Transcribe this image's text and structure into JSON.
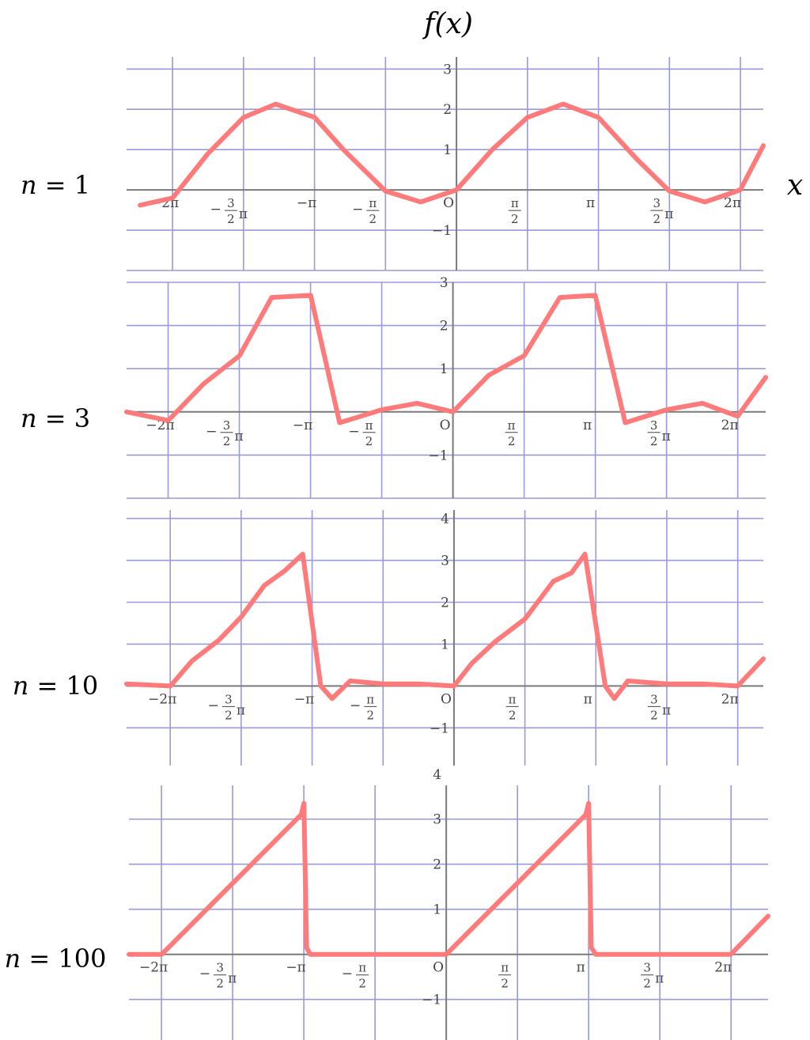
{
  "figure": {
    "ylabel": "f(x)",
    "xlabel": "x"
  },
  "chart_data": [
    {
      "type": "line",
      "label": "n = 1",
      "n": 1,
      "xlim": [
        -7.3,
        6.79
      ],
      "ylim": [
        -2,
        3.3
      ],
      "yticks": [
        -1,
        1,
        2,
        3
      ],
      "xticks": [
        "−2π",
        "−3/2 π",
        "−π",
        "−π/2",
        "O",
        "π/2",
        "π",
        "3/2 π",
        "2π"
      ],
      "x": [
        -7.0,
        -6.28,
        -5.5,
        -4.71,
        -4.0,
        -3.14,
        -2.5,
        -1.57,
        -0.79,
        0,
        0.79,
        1.57,
        2.36,
        3.14,
        4.0,
        4.71,
        5.5,
        6.28,
        6.79
      ],
      "y": [
        -0.38,
        -0.2,
        0.9,
        1.8,
        2.13,
        1.8,
        1.0,
        -0.03,
        -0.3,
        0.0,
        1.0,
        1.8,
        2.13,
        1.8,
        0.75,
        -0.03,
        -0.3,
        0.0,
        1.1
      ]
    },
    {
      "type": "line",
      "label": "n = 3",
      "n": 3,
      "xlim": [
        -7.2,
        6.9
      ],
      "ylim": [
        -2,
        3.0
      ],
      "yticks": [
        -1,
        1,
        2,
        3
      ],
      "xticks": [
        "−2π",
        "−3/2 π",
        "−π",
        "−π/2",
        "O",
        "π/2",
        "π",
        "3/2 π",
        "2π"
      ],
      "x": [
        -7.2,
        -6.28,
        -5.5,
        -4.71,
        -4.0,
        -3.14,
        -2.5,
        -1.57,
        -0.79,
        0,
        0.79,
        1.57,
        2.36,
        3.14,
        3.8,
        4.71,
        5.5,
        6.28,
        6.9
      ],
      "y": [
        0.0,
        -0.2,
        0.65,
        1.3,
        2.65,
        2.7,
        -0.25,
        0.05,
        0.2,
        0.0,
        0.85,
        1.3,
        2.65,
        2.7,
        -0.25,
        0.05,
        0.2,
        -0.1,
        0.8
      ]
    },
    {
      "type": "line",
      "label": "n = 10",
      "n": 10,
      "xlim": [
        -7.25,
        6.85
      ],
      "ylim": [
        -1.9,
        4.2
      ],
      "yticks": [
        -1,
        1,
        2,
        3,
        4
      ],
      "xticks": [
        "−2π",
        "−3/2 π",
        "−π",
        "−π/2",
        "O",
        "π/2",
        "π",
        "3/2 π",
        "2π"
      ],
      "x": [
        -7.25,
        -6.28,
        -5.8,
        -5.2,
        -4.71,
        -4.2,
        -3.75,
        -3.35,
        -2.95,
        -2.7,
        -2.3,
        -1.57,
        -0.79,
        0,
        0.4,
        0.9,
        1.57,
        2.2,
        2.6,
        2.9,
        3.35,
        3.55,
        3.85,
        4.71,
        5.5,
        6.28,
        6.85
      ],
      "y": [
        0.05,
        0.0,
        0.6,
        1.1,
        1.65,
        2.4,
        2.75,
        3.15,
        0.0,
        -0.3,
        0.12,
        0.05,
        0.05,
        0.0,
        0.55,
        1.05,
        1.6,
        2.5,
        2.7,
        3.15,
        0.0,
        -0.3,
        0.12,
        0.05,
        0.05,
        0.0,
        0.65
      ]
    },
    {
      "type": "line",
      "label": "n = 100",
      "n": 100,
      "xlim": [
        -7.0,
        7.1
      ],
      "ylim": [
        -1.9,
        3.75
      ],
      "yticks": [
        -1,
        1,
        2,
        3,
        4
      ],
      "xticks": [
        "−2π",
        "−3/2 π",
        "−π",
        "−π/2",
        "O",
        "π/2",
        "π",
        "3/2 π",
        "2π"
      ],
      "x": [
        -7.0,
        -6.28,
        -3.2,
        -3.14,
        -3.08,
        -3.0,
        0.0,
        3.08,
        3.14,
        3.2,
        3.3,
        6.28,
        7.1
      ],
      "y": [
        0.0,
        0.0,
        3.1,
        3.35,
        0.15,
        0.0,
        0.0,
        3.1,
        3.35,
        0.15,
        0.0,
        0.0,
        0.85
      ]
    }
  ]
}
